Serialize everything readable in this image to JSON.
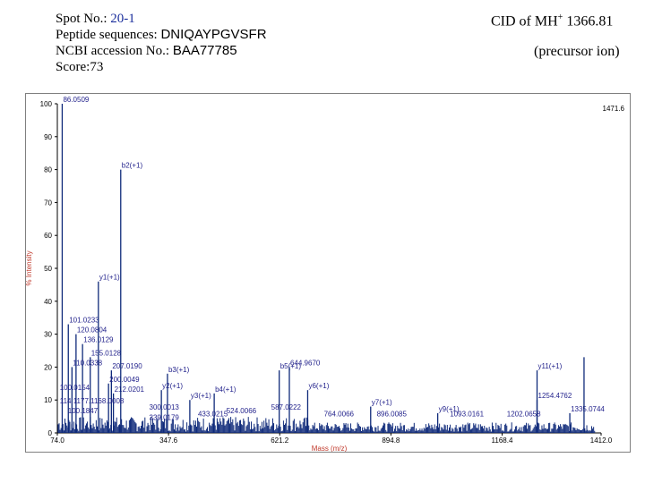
{
  "header": {
    "spot_label": "Spot No.: ",
    "spot_value": "20-1",
    "peptide_label": "Peptide sequences: ",
    "peptide_value": "DNIQAYPGVSFR",
    "ncbi_label": "NCBI accession No.: ",
    "ncbi_value": "BAA77785",
    "score": "Score:73",
    "cid_prefix": "CID of MH",
    "cid_sup": "+",
    "cid_value": " 1366.81",
    "precursor": "(precursor ion)"
  },
  "colors": {
    "axis_label": "#c0392b",
    "annotation": "#1f1f8a",
    "spectrum": "#0f2a7a",
    "accent": "#1a2e9c"
  },
  "chart_data": {
    "type": "bar",
    "xlabel": "Mass (m/z)",
    "ylabel": "% Intensity",
    "xlim": [
      74.0,
      1412.0
    ],
    "ylim": [
      0,
      100
    ],
    "x_ticks": [
      "74.0",
      "347.6",
      "621.2",
      "894.8",
      "1168.4",
      "1412.0"
    ],
    "x_tick_values": [
      74.0,
      347.6,
      621.2,
      894.8,
      1168.4,
      1412.0
    ],
    "y_ticks": [
      "0",
      "10",
      "20",
      "30",
      "40",
      "50",
      "60",
      "70",
      "80",
      "90",
      "100"
    ],
    "max_label": "1471.6",
    "peaks": [
      {
        "mz": 86.0,
        "intensity": 100,
        "label": "86.0509"
      },
      {
        "mz": 101.0,
        "intensity": 33,
        "label": "101.0233"
      },
      {
        "mz": 120.0,
        "intensity": 30,
        "label": "120.0804"
      },
      {
        "mz": 136.0,
        "intensity": 27,
        "label": "136.0129"
      },
      {
        "mz": 155.0,
        "intensity": 23,
        "label": "155.0128"
      },
      {
        "mz": 110.0,
        "intensity": 20,
        "label": "110.0338"
      },
      {
        "mz": 207.0,
        "intensity": 19,
        "label": "207.0190"
      },
      {
        "mz": 200.0,
        "intensity": 15,
        "label": "200.0049"
      },
      {
        "mz": 212.0,
        "intensity": 12,
        "label": "212.0201"
      },
      {
        "mz": 175.0,
        "intensity": 46,
        "label": "y1(+1)"
      },
      {
        "mz": 230.0,
        "intensity": 80,
        "label": "b2(+1)"
      },
      {
        "mz": 345.0,
        "intensity": 18,
        "label": "b3(+1)"
      },
      {
        "mz": 330.0,
        "intensity": 13,
        "label": "y2(+1)"
      },
      {
        "mz": 400.0,
        "intensity": 10,
        "label": "y3(+1)"
      },
      {
        "mz": 460.0,
        "intensity": 12,
        "label": "b4(+1)"
      },
      {
        "mz": 620.0,
        "intensity": 19,
        "label": "b5(+1)"
      },
      {
        "mz": 644.9,
        "intensity": 20,
        "label": "644.9670"
      },
      {
        "mz": 690.0,
        "intensity": 13,
        "label": "y6(+1)"
      },
      {
        "mz": 845.0,
        "intensity": 8,
        "label": "y7(+1)"
      },
      {
        "mz": 1010.0,
        "intensity": 6,
        "label": "y9(+1)"
      },
      {
        "mz": 1254.4,
        "intensity": 19,
        "label": "y11(+1)"
      },
      {
        "mz": 1254.4,
        "intensity": 10,
        "label": "1254.4762"
      },
      {
        "mz": 1335.0,
        "intensity": 6,
        "label": "1335.0744"
      },
      {
        "mz": 1370.0,
        "intensity": 23,
        "label": ""
      }
    ],
    "small_labels": [
      {
        "mz": 80,
        "intensity": 13,
        "label": "100.0154"
      },
      {
        "mz": 80,
        "intensity": 9,
        "label": "114.1177.1168.0008"
      },
      {
        "mz": 100,
        "intensity": 6,
        "label": "100.1847"
      },
      {
        "mz": 300,
        "intensity": 7,
        "label": "300.0013"
      },
      {
        "mz": 300,
        "intensity": 4,
        "label": "339.0179"
      },
      {
        "mz": 420,
        "intensity": 5,
        "label": "433.0215"
      },
      {
        "mz": 490,
        "intensity": 6,
        "label": "524.0066"
      },
      {
        "mz": 600,
        "intensity": 7,
        "label": "587.0222"
      },
      {
        "mz": 730,
        "intensity": 5,
        "label": "764.0066"
      },
      {
        "mz": 860,
        "intensity": 5,
        "label": "896.0085"
      },
      {
        "mz": 1040,
        "intensity": 5,
        "label": "1093.0161"
      },
      {
        "mz": 1180,
        "intensity": 5,
        "label": "1202.0658"
      }
    ]
  }
}
